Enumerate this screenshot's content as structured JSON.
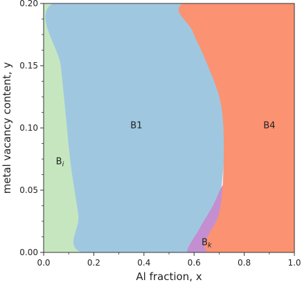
{
  "chart_data": {
    "type": "area",
    "title": "",
    "xlabel": "Al fraction, x",
    "ylabel": "metal vacancy content, y",
    "xlim": [
      0.0,
      1.0
    ],
    "ylim": [
      0.0,
      0.2
    ],
    "x_ticks": [
      "0.0",
      "0.2",
      "0.4",
      "0.6",
      "0.8",
      "1.0"
    ],
    "y_ticks": [
      "0.00",
      "0.05",
      "0.10",
      "0.15",
      "0.20"
    ],
    "grid": false,
    "legend": "none",
    "colors": {
      "Bi": "#c6e6c0",
      "B1": "#9fc8e0",
      "Bk": "#c48fd0",
      "B4": "#fb9272"
    },
    "regions": [
      {
        "label_main": "B",
        "label_sub": "i",
        "label_at": [
          0.065,
          0.073
        ],
        "boundary": [
          [
            0.0,
            0.0
          ],
          [
            0.155,
            0.0
          ],
          [
            0.14,
            0.03
          ],
          [
            0.11,
            0.07
          ],
          [
            0.09,
            0.11
          ],
          [
            0.07,
            0.15
          ],
          [
            0.04,
            0.2
          ],
          [
            0.0,
            0.2
          ]
        ]
      },
      {
        "label_main": "B1",
        "label_sub": "",
        "label_at": [
          0.37,
          0.102
        ],
        "boundary": [
          [
            0.155,
            0.0
          ],
          [
            0.575,
            0.0
          ],
          [
            0.62,
            0.018
          ],
          [
            0.675,
            0.037
          ],
          [
            0.705,
            0.05
          ],
          [
            0.72,
            0.085
          ],
          [
            0.715,
            0.11
          ],
          [
            0.695,
            0.13
          ],
          [
            0.64,
            0.158
          ],
          [
            0.595,
            0.178
          ],
          [
            0.565,
            0.2
          ],
          [
            0.04,
            0.2
          ],
          [
            0.07,
            0.15
          ],
          [
            0.09,
            0.11
          ],
          [
            0.11,
            0.07
          ],
          [
            0.14,
            0.03
          ]
        ]
      },
      {
        "label_main": "B",
        "label_sub": "k",
        "label_at": [
          0.65,
          0.008
        ],
        "boundary": [
          [
            0.575,
            0.0
          ],
          [
            0.66,
            0.0
          ],
          [
            0.7,
            0.03
          ],
          [
            0.715,
            0.052
          ],
          [
            0.705,
            0.05
          ],
          [
            0.675,
            0.037
          ],
          [
            0.62,
            0.018
          ]
        ]
      },
      {
        "label_main": "B4",
        "label_sub": "",
        "label_at": [
          0.9,
          0.102
        ],
        "boundary": [
          [
            0.66,
            0.0
          ],
          [
            1.0,
            0.0
          ],
          [
            1.0,
            0.2
          ],
          [
            0.565,
            0.2
          ],
          [
            0.595,
            0.178
          ],
          [
            0.64,
            0.158
          ],
          [
            0.695,
            0.13
          ],
          [
            0.715,
            0.11
          ],
          [
            0.72,
            0.085
          ],
          [
            0.715,
            0.052
          ],
          [
            0.7,
            0.03
          ]
        ]
      }
    ]
  }
}
